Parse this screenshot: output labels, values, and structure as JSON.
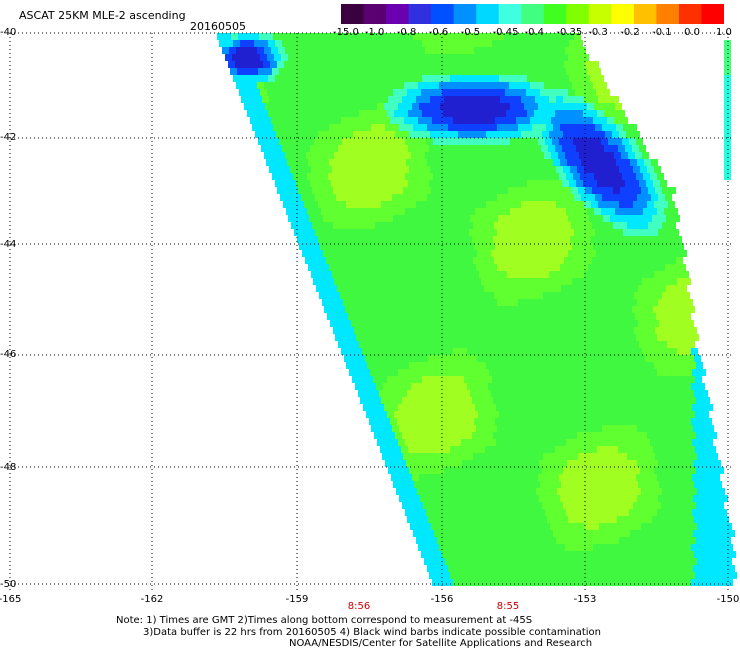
{
  "header": {
    "title": "ASCAT 25KM MLE-2 ascending",
    "date": "20160505"
  },
  "colorbar": {
    "labels": [
      "-15.0",
      "-1.0",
      "-0.8",
      "-0.6",
      "-0.5",
      "-0.45",
      "-0.4",
      "-0.35",
      "-0.3",
      "-0.2",
      "-0.1",
      "0.0",
      "1.0"
    ],
    "colors": [
      "#3a0040",
      "#5a0070",
      "#6a00b0",
      "#3030e0",
      "#0050ff",
      "#0090ff",
      "#00d8ff",
      "#40ffe0",
      "#40ff80",
      "#40ff20",
      "#80ff00",
      "#c8ff00",
      "#ffff00",
      "#ffc000",
      "#ff8000",
      "#ff3000",
      "#ff0000"
    ]
  },
  "axes": {
    "lat_labels": [
      "-40",
      "-42",
      "-44",
      "-46",
      "-48",
      "-50"
    ],
    "lon_labels": [
      "-165",
      "-162",
      "-159",
      "-156",
      "-153",
      "-150"
    ],
    "times": [
      "8:56",
      "8:55"
    ]
  },
  "notes": {
    "line1": "Note: 1) Times are GMT 2)Times along bottom correspond to measurement at -45S",
    "line2": "3)Data buffer is 22 hrs from 20160505 4) Black wind barbs indicate possible contamination",
    "line3": "NOAA/NESDIS/Center for Satellite Applications and Research"
  }
}
